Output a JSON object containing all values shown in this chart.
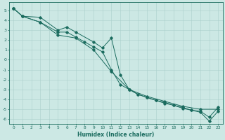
{
  "xlabel": "Humidex (Indice chaleur)",
  "bg_color": "#cce8e4",
  "grid_color": "#aacfcb",
  "line_color": "#1a6b5e",
  "xlim": [
    -0.5,
    23.5
  ],
  "ylim": [
    -6.5,
    5.8
  ],
  "xticks": [
    0,
    1,
    2,
    3,
    4,
    5,
    6,
    7,
    8,
    9,
    10,
    11,
    12,
    13,
    14,
    15,
    16,
    17,
    18,
    19,
    20,
    21,
    22,
    23
  ],
  "yticks": [
    -6,
    -5,
    -4,
    -3,
    -2,
    -1,
    0,
    1,
    2,
    3,
    4,
    5
  ],
  "line1_x": [
    0,
    1,
    3,
    5,
    7,
    9,
    11,
    13,
    15,
    17,
    19,
    21,
    23
  ],
  "line1_y": [
    5.2,
    4.4,
    3.8,
    2.5,
    2.2,
    1.0,
    -1.2,
    -3.0,
    -3.7,
    -4.2,
    -4.7,
    -5.0,
    -5.0
  ],
  "line2_x": [
    0,
    1,
    3,
    5,
    6,
    7,
    9,
    10,
    11,
    12,
    13,
    14,
    15,
    16,
    17,
    18,
    19,
    20,
    21,
    22,
    23
  ],
  "line2_y": [
    5.2,
    4.4,
    4.3,
    3.0,
    3.3,
    2.8,
    1.8,
    1.2,
    2.2,
    -1.5,
    -3.0,
    -3.5,
    -3.8,
    -4.1,
    -4.3,
    -4.6,
    -4.8,
    -5.1,
    -5.2,
    -5.8,
    -4.8
  ],
  "line3_x": [
    0,
    1,
    3,
    5,
    6,
    7,
    8,
    9,
    10,
    11,
    12,
    13,
    14,
    15,
    16,
    17,
    18,
    19,
    20,
    21,
    22,
    23
  ],
  "line3_y": [
    5.2,
    4.4,
    3.8,
    2.8,
    2.8,
    2.3,
    1.8,
    1.3,
    0.8,
    -1.0,
    -2.5,
    -3.0,
    -3.5,
    -3.8,
    -4.1,
    -4.4,
    -4.6,
    -4.9,
    -5.1,
    -5.3,
    -6.2,
    -5.2
  ]
}
